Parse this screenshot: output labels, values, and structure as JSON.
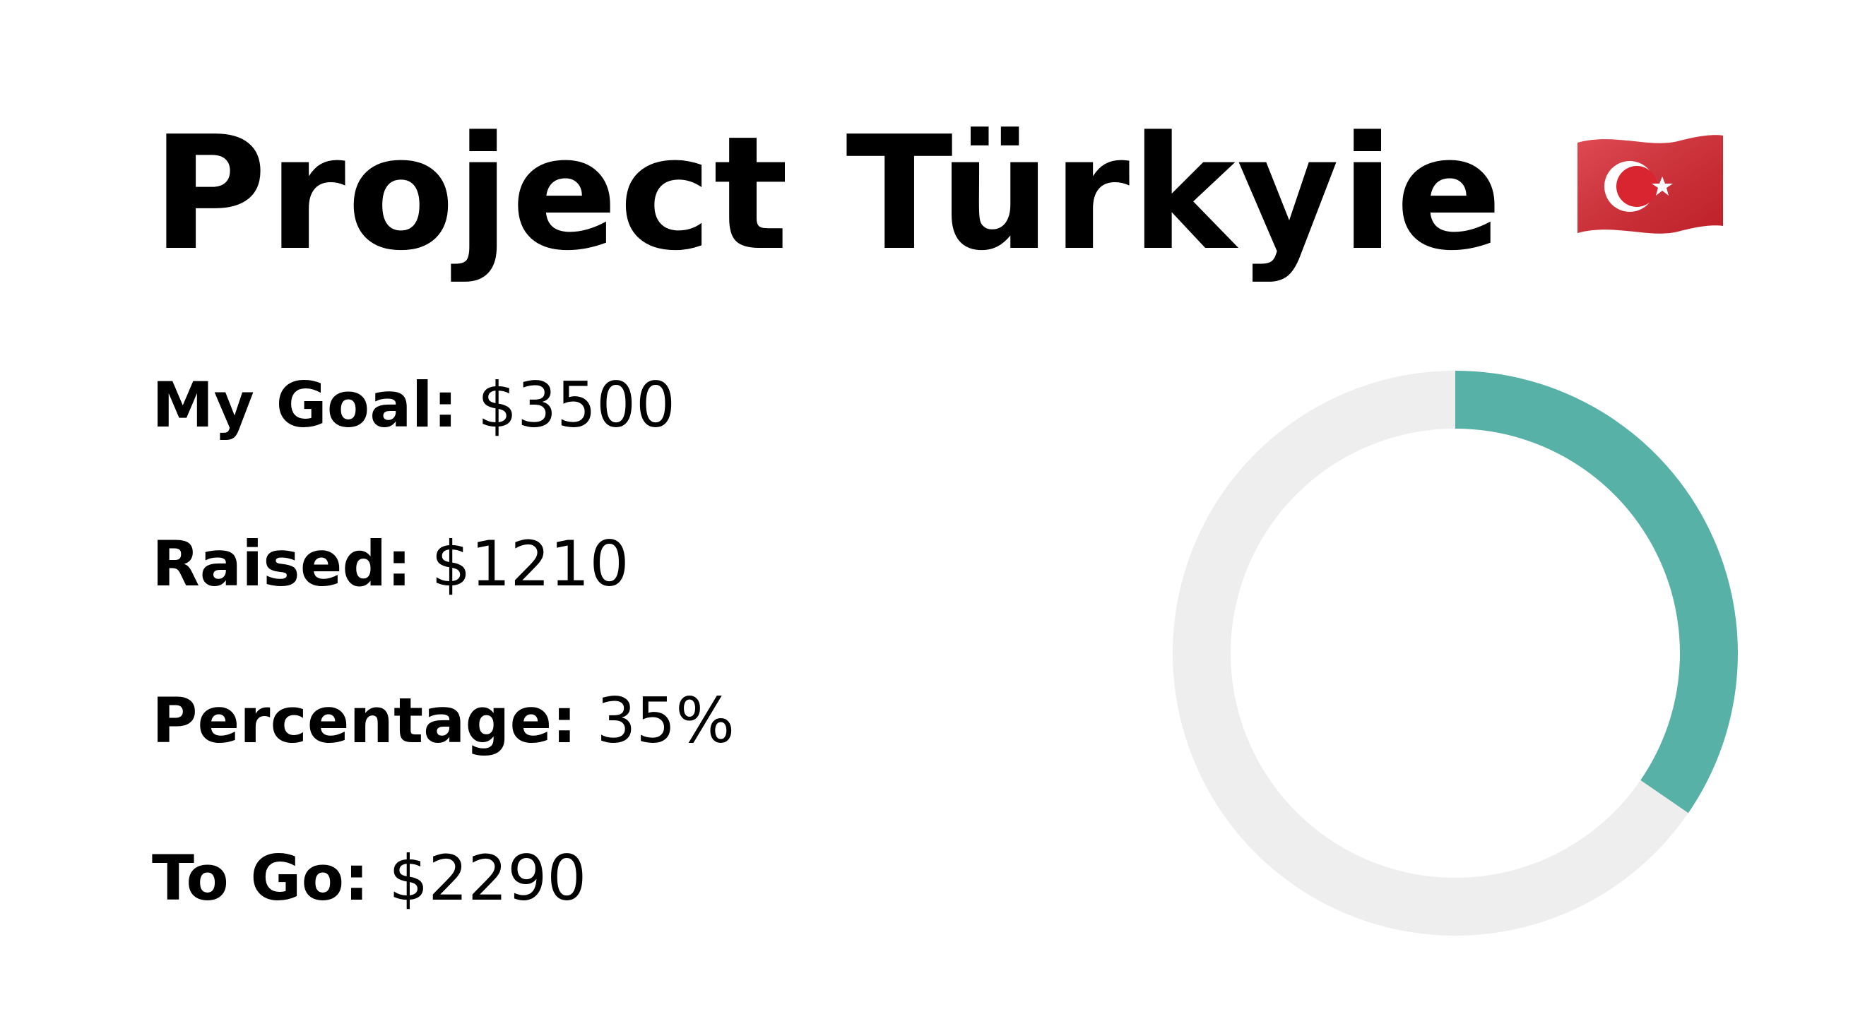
{
  "title": "Project Türkyie",
  "flag_icon": "turkey-flag-icon",
  "stats": [
    {
      "label": "My Goal:",
      "value": "$3500"
    },
    {
      "label": "Raised:",
      "value": "$1210"
    },
    {
      "label": "Percentage:",
      "value": "35%"
    },
    {
      "label": "To Go:",
      "value": "$2290"
    }
  ],
  "colors": {
    "progress": "#58b1a7",
    "track": "#eeeeee",
    "flag_red": "#d9252f",
    "flag_white": "#ffffff"
  },
  "chart_data": {
    "type": "pie",
    "categories": [
      "Raised",
      "To Go"
    ],
    "values": [
      1210,
      2290
    ],
    "colors": [
      "#58b1a7",
      "#eeeeee"
    ],
    "donut": true
  }
}
